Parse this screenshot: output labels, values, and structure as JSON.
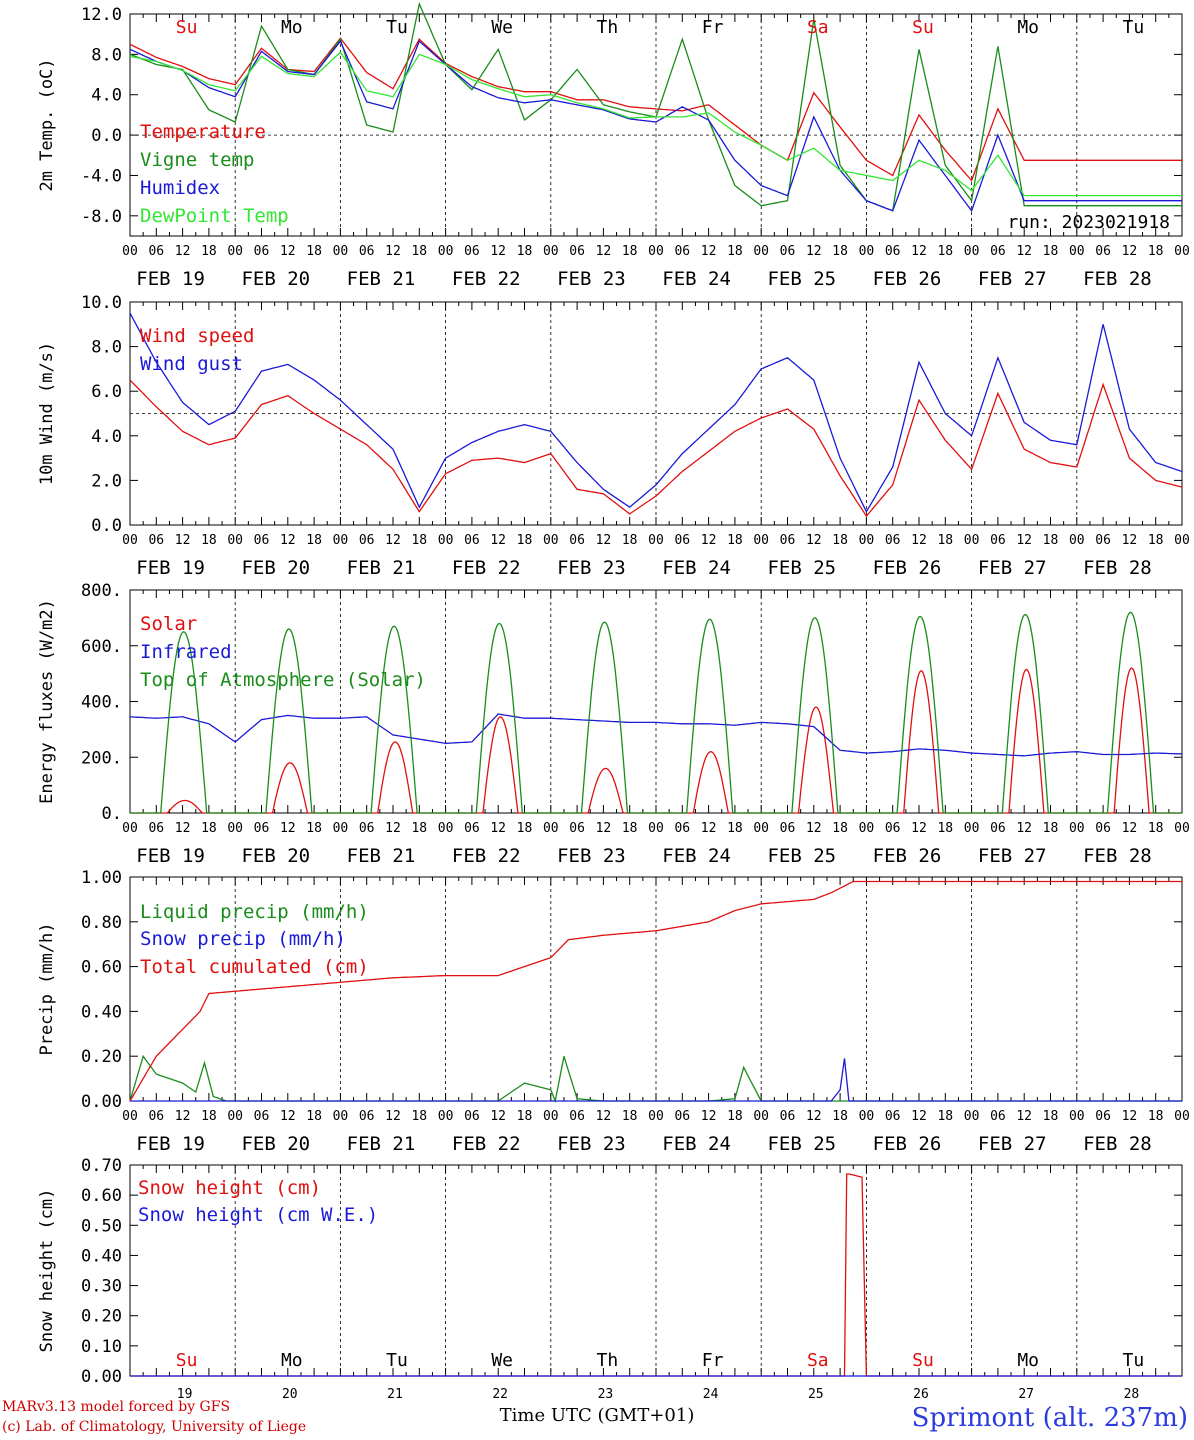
{
  "meteogram": {
    "station": "Sprimont (alt. 237m)",
    "credit_line_1": "MARv3.13 model forced by GFS",
    "credit_line_2": "(c) Lab. of Climatology, University of Liege",
    "time_axis_label": "Time UTC (GMT+01)",
    "run_label": "run: 2023021918",
    "hour_ticks": [
      "00",
      "06",
      "12",
      "18"
    ],
    "days": [
      {
        "abbr": "Su",
        "date": "FEB 19",
        "num": "19",
        "weekend": true
      },
      {
        "abbr": "Mo",
        "date": "FEB 20",
        "num": "20",
        "weekend": false
      },
      {
        "abbr": "Tu",
        "date": "FEB 21",
        "num": "21",
        "weekend": false
      },
      {
        "abbr": "We",
        "date": "FEB 22",
        "num": "22",
        "weekend": false
      },
      {
        "abbr": "Th",
        "date": "FEB 23",
        "num": "23",
        "weekend": false
      },
      {
        "abbr": "Fr",
        "date": "FEB 24",
        "num": "24",
        "weekend": false
      },
      {
        "abbr": "Sa",
        "date": "FEB 25",
        "num": "25",
        "weekend": true
      },
      {
        "abbr": "Su",
        "date": "FEB 26",
        "num": "26",
        "weekend": true
      },
      {
        "abbr": "Mo",
        "date": "FEB 27",
        "num": "27",
        "weekend": false
      },
      {
        "abbr": "Tu",
        "date": "FEB 28",
        "num": "28",
        "weekend": false
      }
    ],
    "colors": {
      "red": "#e01010",
      "green": "#1a8c1a",
      "blue": "#1a1ad8",
      "lightgreen": "#33e633",
      "weekend": "#e01010"
    }
  },
  "chart_data": [
    {
      "type": "line",
      "ylabel": "2m Temp. (oC)",
      "ylim": [
        -10,
        12
      ],
      "yticks": [
        "12.0",
        "8.0",
        "4.0",
        "0.0",
        "-4.0",
        "-8.0"
      ],
      "ytick_values": [
        12,
        8,
        4,
        0,
        -4,
        -8
      ],
      "reference_line": 0,
      "x_unit": "hours since FEB 19 00 UTC",
      "series": [
        {
          "name": "Temperature",
          "color": "red",
          "x": [
            0,
            6,
            12,
            18,
            24,
            30,
            36,
            42,
            48,
            54,
            60,
            66,
            72,
            78,
            84,
            90,
            96,
            102,
            108,
            114,
            120,
            126,
            132,
            138,
            144,
            150,
            156,
            162,
            168,
            174,
            180,
            186,
            192,
            198,
            204,
            210,
            216,
            222,
            228,
            234,
            240
          ],
          "y": [
            9.0,
            7.7,
            6.8,
            5.6,
            5.0,
            8.6,
            6.5,
            6.3,
            9.6,
            6.2,
            4.6,
            9.5,
            7.1,
            5.8,
            4.8,
            4.3,
            4.3,
            3.5,
            3.5,
            2.8,
            2.6,
            2.4,
            3.0,
            1.0,
            -1.0,
            -2.5,
            4.2,
            0.8,
            -2.5,
            -4.0,
            2.0,
            -1.5,
            -4.5,
            2.6,
            -2.5,
            -2.5,
            -2.5,
            -2.5,
            -2.5,
            -2.5,
            -2.5
          ]
        },
        {
          "name": "Vigne temp",
          "color": "green",
          "x": [
            0,
            6,
            12,
            18,
            24,
            30,
            36,
            42,
            48,
            54,
            60,
            66,
            72,
            78,
            84,
            90,
            96,
            102,
            108,
            114,
            120,
            126,
            132,
            138,
            144,
            150,
            156,
            162,
            168,
            174,
            180,
            186,
            192,
            198,
            204,
            210,
            216,
            222,
            228,
            234,
            240
          ],
          "y": [
            8.0,
            7.0,
            6.5,
            2.5,
            1.3,
            10.8,
            6.5,
            6.0,
            9.5,
            1.0,
            0.3,
            13.0,
            7.0,
            4.5,
            8.5,
            1.5,
            3.5,
            6.5,
            3.0,
            2.3,
            1.8,
            9.5,
            1.5,
            -5.0,
            -7.0,
            -6.5,
            11.5,
            -3.0,
            -6.5,
            -7.5,
            8.5,
            -3.0,
            -6.5,
            8.8,
            -7.0,
            -7.0,
            -7.0,
            -7.0,
            -7.0,
            -7.0,
            -7.0
          ]
        },
        {
          "name": "Humidex",
          "color": "blue",
          "x": [
            0,
            6,
            12,
            18,
            24,
            30,
            36,
            42,
            48,
            54,
            60,
            66,
            72,
            78,
            84,
            90,
            96,
            102,
            108,
            114,
            120,
            126,
            132,
            138,
            144,
            150,
            156,
            162,
            168,
            174,
            180,
            186,
            192,
            198,
            204,
            210,
            216,
            222,
            228,
            234,
            240
          ],
          "y": [
            8.5,
            7.3,
            6.4,
            4.7,
            3.8,
            8.3,
            6.3,
            6.0,
            9.3,
            3.3,
            2.6,
            9.3,
            7.0,
            4.8,
            3.7,
            3.2,
            3.5,
            3.0,
            2.5,
            1.6,
            1.3,
            2.8,
            1.5,
            -2.5,
            -5.0,
            -6.0,
            1.8,
            -3.5,
            -6.5,
            -7.5,
            -0.5,
            -4.0,
            -7.5,
            0.0,
            -6.5,
            -6.5,
            -6.5,
            -6.5,
            -6.5,
            -6.5,
            -6.5
          ]
        },
        {
          "name": "DewPoint Temp",
          "color": "lightgreen",
          "x": [
            0,
            6,
            12,
            18,
            24,
            30,
            36,
            42,
            48,
            54,
            60,
            66,
            72,
            78,
            84,
            90,
            96,
            102,
            108,
            114,
            120,
            126,
            132,
            138,
            144,
            150,
            156,
            162,
            168,
            174,
            180,
            186,
            192,
            198,
            204,
            210,
            216,
            222,
            228,
            234,
            240
          ],
          "y": [
            7.8,
            7.3,
            6.4,
            5.0,
            4.4,
            7.8,
            6.1,
            5.8,
            8.2,
            4.4,
            3.8,
            8.0,
            7.0,
            5.5,
            4.6,
            3.8,
            4.0,
            3.2,
            2.6,
            1.7,
            1.8,
            1.8,
            2.2,
            0.3,
            -1.0,
            -2.5,
            -1.3,
            -3.5,
            -4.0,
            -4.5,
            -2.5,
            -3.5,
            -5.5,
            -2.0,
            -6.0,
            -6.0,
            -6.0,
            -6.0,
            -6.0,
            -6.0,
            -6.0
          ]
        }
      ]
    },
    {
      "type": "line",
      "ylabel": "10m Wind (m/s)",
      "ylim": [
        0,
        10
      ],
      "yticks": [
        "10.0",
        "8.0",
        "6.0",
        "4.0",
        "2.0",
        "0.0"
      ],
      "ytick_values": [
        10,
        8,
        6,
        4,
        2,
        0
      ],
      "reference_line": 5,
      "x_unit": "hours since FEB 19 00 UTC",
      "series": [
        {
          "name": "Wind speed",
          "color": "red",
          "x": [
            0,
            6,
            12,
            18,
            24,
            30,
            36,
            42,
            48,
            54,
            60,
            66,
            72,
            78,
            84,
            90,
            96,
            102,
            108,
            114,
            120,
            126,
            132,
            138,
            144,
            150,
            156,
            162,
            168,
            174,
            180,
            186,
            192,
            198,
            204,
            210,
            216,
            222,
            228,
            234,
            240
          ],
          "y": [
            6.5,
            5.3,
            4.2,
            3.6,
            3.9,
            5.4,
            5.8,
            5.0,
            4.3,
            3.6,
            2.5,
            0.6,
            2.3,
            2.9,
            3.0,
            2.8,
            3.2,
            1.6,
            1.4,
            0.5,
            1.3,
            2.4,
            3.3,
            4.2,
            4.8,
            5.2,
            4.3,
            2.2,
            0.4,
            1.8,
            5.6,
            3.8,
            2.5,
            5.9,
            3.4,
            2.8,
            2.6,
            6.3,
            3.0,
            2.0,
            1.7
          ]
        },
        {
          "name": "Wind gust",
          "color": "blue",
          "x": [
            0,
            6,
            12,
            18,
            24,
            30,
            36,
            42,
            48,
            54,
            60,
            66,
            72,
            78,
            84,
            90,
            96,
            102,
            108,
            114,
            120,
            126,
            132,
            138,
            144,
            150,
            156,
            162,
            168,
            174,
            180,
            186,
            192,
            198,
            204,
            210,
            216,
            222,
            228,
            234,
            240
          ],
          "y": [
            9.5,
            7.3,
            5.5,
            4.5,
            5.1,
            6.9,
            7.2,
            6.5,
            5.6,
            4.5,
            3.4,
            0.8,
            3.0,
            3.7,
            4.2,
            4.5,
            4.2,
            2.8,
            1.6,
            0.8,
            1.8,
            3.2,
            4.3,
            5.4,
            7.0,
            7.5,
            6.5,
            3.0,
            0.6,
            2.6,
            7.3,
            5.0,
            4.0,
            7.5,
            4.6,
            3.8,
            3.6,
            9.0,
            4.3,
            2.8,
            2.4
          ]
        }
      ]
    },
    {
      "type": "line",
      "ylabel": "Energy fluxes (W/m2)",
      "ylim": [
        0,
        800
      ],
      "yticks": [
        "800.",
        "600.",
        "400.",
        "200.",
        "0."
      ],
      "ytick_values": [
        800,
        600,
        400,
        200,
        0
      ],
      "x_unit": "hours since FEB 19 00 UTC",
      "series": [
        {
          "name": "Solar",
          "color": "red",
          "peaks": [
            45,
            180,
            255,
            345,
            160,
            220,
            380,
            510,
            515,
            520
          ]
        },
        {
          "name": "Infrared",
          "color": "blue",
          "x": [
            0,
            6,
            12,
            18,
            24,
            30,
            36,
            42,
            48,
            54,
            60,
            66,
            72,
            78,
            84,
            90,
            96,
            102,
            108,
            114,
            120,
            126,
            132,
            138,
            144,
            150,
            156,
            162,
            168,
            174,
            180,
            186,
            192,
            198,
            204,
            210,
            216,
            222,
            228,
            234,
            240
          ],
          "y": [
            345,
            340,
            345,
            320,
            255,
            335,
            350,
            340,
            340,
            345,
            280,
            265,
            250,
            255,
            355,
            340,
            340,
            335,
            330,
            325,
            325,
            320,
            320,
            315,
            325,
            320,
            310,
            225,
            215,
            220,
            230,
            225,
            215,
            210,
            205,
            215,
            220,
            210,
            210,
            215,
            212
          ]
        },
        {
          "name": "Top of Atmosphere (Solar)",
          "color": "green",
          "peaks": [
            650,
            660,
            670,
            680,
            685,
            695,
            700,
            705,
            712,
            720
          ]
        }
      ]
    },
    {
      "type": "line",
      "ylabel": "Precip (mm/h)",
      "ylim": [
        0,
        1.0
      ],
      "yticks": [
        "1.00",
        "0.80",
        "0.60",
        "0.40",
        "0.20",
        "0.00"
      ],
      "ytick_values": [
        1.0,
        0.8,
        0.6,
        0.4,
        0.2,
        0.0
      ],
      "x_unit": "hours since FEB 19 00 UTC",
      "series": [
        {
          "name": "Liquid precip (mm/h)",
          "color": "green",
          "x": [
            0,
            3,
            6,
            9,
            12,
            15,
            17,
            19,
            22,
            48,
            84,
            90,
            96,
            97,
            99,
            102,
            108,
            132,
            138,
            140,
            144,
            165,
            170,
            240
          ],
          "y": [
            0.0,
            0.2,
            0.12,
            0.1,
            0.08,
            0.04,
            0.17,
            0.02,
            0.0,
            0.0,
            0.0,
            0.08,
            0.05,
            0.0,
            0.2,
            0.01,
            0.0,
            0.0,
            0.01,
            0.15,
            0.0,
            0.0,
            0.0,
            0.0
          ]
        },
        {
          "name": "Snow precip (mm/h)",
          "color": "blue",
          "x": [
            0,
            160,
            162,
            163,
            164,
            166,
            240
          ],
          "y": [
            0.0,
            0.0,
            0.05,
            0.19,
            0.0,
            0.0,
            0.0
          ]
        },
        {
          "name": "Total cumulated (cm)",
          "color": "red",
          "x": [
            0,
            6,
            12,
            16,
            18,
            24,
            36,
            48,
            60,
            72,
            84,
            90,
            96,
            100,
            108,
            120,
            132,
            138,
            144,
            156,
            160,
            165,
            168,
            180,
            192,
            204,
            216,
            228,
            240
          ],
          "y": [
            0.0,
            0.2,
            0.32,
            0.4,
            0.48,
            0.49,
            0.51,
            0.53,
            0.55,
            0.56,
            0.56,
            0.6,
            0.64,
            0.72,
            0.74,
            0.76,
            0.8,
            0.85,
            0.88,
            0.9,
            0.93,
            0.98,
            0.98,
            0.98,
            0.98,
            0.98,
            0.98,
            0.98,
            0.98
          ]
        }
      ]
    },
    {
      "type": "line",
      "ylabel": "Snow height (cm)",
      "ylim": [
        0,
        0.7
      ],
      "yticks": [
        "0.70",
        "0.60",
        "0.50",
        "0.40",
        "0.30",
        "0.20",
        "0.10",
        "0.00"
      ],
      "ytick_values": [
        0.7,
        0.6,
        0.5,
        0.4,
        0.3,
        0.2,
        0.1,
        0.0
      ],
      "x_unit": "hours since FEB 19 00 UTC",
      "series": [
        {
          "name": "Snow height (cm)",
          "color": "red",
          "x": [
            0,
            163,
            163.5,
            164,
            167,
            168,
            168.5,
            240
          ],
          "y": [
            0.0,
            0.0,
            0.67,
            0.67,
            0.66,
            0.0,
            0.0,
            0.0
          ]
        },
        {
          "name": "Snow height (cm W.E.)",
          "color": "blue",
          "x": [
            0,
            240
          ],
          "y": [
            0.0,
            0.0
          ]
        }
      ]
    }
  ]
}
